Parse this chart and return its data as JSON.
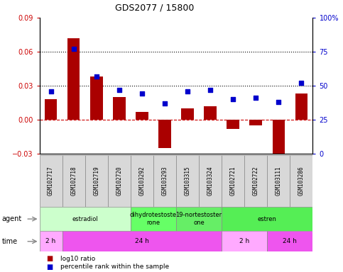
{
  "title": "GDS2077 / 15800",
  "samples": [
    "GSM102717",
    "GSM102718",
    "GSM102719",
    "GSM102720",
    "GSM103292",
    "GSM103293",
    "GSM103315",
    "GSM103324",
    "GSM102721",
    "GSM102722",
    "GSM103111",
    "GSM103286"
  ],
  "log10_ratio": [
    0.018,
    0.072,
    0.038,
    0.02,
    0.007,
    -0.025,
    0.01,
    0.012,
    -0.008,
    -0.005,
    -0.033,
    0.023
  ],
  "percentile_rank": [
    46,
    77,
    57,
    47,
    44,
    37,
    46,
    47,
    40,
    41,
    38,
    52
  ],
  "ylim_left": [
    -0.03,
    0.09
  ],
  "ylim_right": [
    0,
    100
  ],
  "yticks_left": [
    -0.03,
    0.0,
    0.03,
    0.06,
    0.09
  ],
  "yticks_right": [
    0,
    25,
    50,
    75,
    100
  ],
  "hlines": [
    0.03,
    0.06
  ],
  "agent_groups": [
    {
      "label": "estradiol",
      "start": 0,
      "end": 4,
      "color": "#ccffcc"
    },
    {
      "label": "dihydrotestoste\nrone",
      "start": 4,
      "end": 6,
      "color": "#66ff66"
    },
    {
      "label": "19-nortestoster\none",
      "start": 6,
      "end": 8,
      "color": "#66ee66"
    },
    {
      "label": "estren",
      "start": 8,
      "end": 12,
      "color": "#55ee55"
    }
  ],
  "time_groups": [
    {
      "label": "2 h",
      "start": 0,
      "end": 1,
      "color": "#ffaaff"
    },
    {
      "label": "24 h",
      "start": 1,
      "end": 8,
      "color": "#ee55ee"
    },
    {
      "label": "2 h",
      "start": 8,
      "end": 10,
      "color": "#ffaaff"
    },
    {
      "label": "24 h",
      "start": 10,
      "end": 12,
      "color": "#ee55ee"
    }
  ],
  "bar_color": "#aa0000",
  "scatter_color": "#0000cc",
  "zero_line_color": "#cc0000",
  "dot_line_color": "#000000",
  "left_label_color": "#cc0000",
  "right_label_color": "#0000cc",
  "sample_bg": "#d8d8d8",
  "ylabel_left": "log10 ratio",
  "ylabel_right": "percentile rank within the sample"
}
